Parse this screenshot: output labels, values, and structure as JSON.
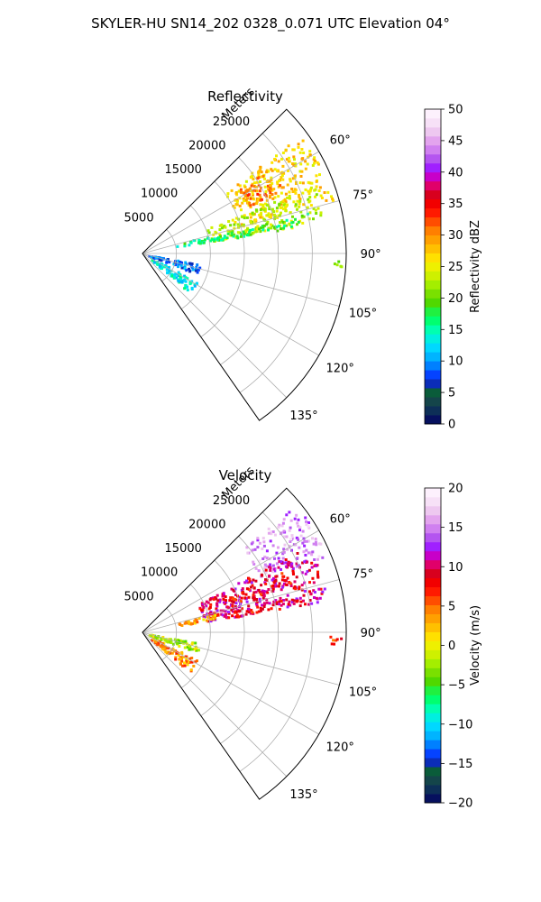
{
  "figure_title": "SKYLER-HU  SN14_202  0328_0.071 UTC Elevation 04°",
  "chart_data": [
    {
      "type": "heatmap",
      "projection": "polar-sector",
      "title": "Reflectivity",
      "range_label": "Meters",
      "range_ticks": [
        5000,
        10000,
        15000,
        20000,
        25000
      ],
      "range_tick_labels": [
        "5000",
        "10000",
        "15000",
        "20000",
        "25000"
      ],
      "range_max": 30000,
      "azimuth_range_deg": [
        45,
        145
      ],
      "azimuth_ticks_deg": [
        60,
        75,
        90,
        105,
        120,
        135
      ],
      "azimuth_tick_labels": [
        "60°",
        "75°",
        "90°",
        "105°",
        "120°",
        "135°"
      ],
      "grid": true,
      "colorbar": {
        "label": "Reflectivity dBZ",
        "range": [
          0,
          50
        ],
        "ticks": [
          0,
          5,
          10,
          15,
          20,
          25,
          30,
          35,
          40,
          45,
          50
        ],
        "tick_labels": [
          "0",
          "5",
          "10",
          "15",
          "20",
          "25",
          "30",
          "35",
          "40",
          "45",
          "50"
        ],
        "colors": [
          "#06105e",
          "#0d2f57",
          "#14454a",
          "#0a5c3a",
          "#0b2db8",
          "#0543ff",
          "#0080ff",
          "#00b4ff",
          "#00d8ff",
          "#00efe0",
          "#00ffb0",
          "#00ff70",
          "#20f040",
          "#50d800",
          "#7ae000",
          "#a4ee00",
          "#cef000",
          "#eef000",
          "#ffe000",
          "#ffc000",
          "#ffa000",
          "#ff7f00",
          "#ff4d00",
          "#ff1a00",
          "#f20000",
          "#d8001e",
          "#e0006a",
          "#c800c8",
          "#a020ff",
          "#b455f0",
          "#d080f0",
          "#e3a4ee",
          "#eec8f0",
          "#f7e1f7",
          "#fdf1fd"
        ]
      },
      "echo_regions": [
        {
          "az": [
            53,
            74
          ],
          "r": [
            15000,
            29000
          ],
          "v": 27
        },
        {
          "az": [
            56,
            66
          ],
          "r": [
            17000,
            23000
          ],
          "v": 31
        },
        {
          "az": [
            68,
            80
          ],
          "r": [
            10000,
            27000
          ],
          "v": 23
        },
        {
          "az": [
            74,
            79
          ],
          "r": [
            5000,
            11000
          ],
          "v": 16
        },
        {
          "az": [
            76,
            80
          ],
          "r": [
            10000,
            25000
          ],
          "v": 17
        },
        {
          "az": [
            91,
            94
          ],
          "r": [
            27500,
            29500
          ],
          "v": 22
        },
        {
          "az": [
            116,
            130
          ],
          "r": [
            1500,
            9000
          ],
          "v": 13
        },
        {
          "az": [
            100,
            110
          ],
          "r": [
            800,
            8500
          ],
          "v": 9
        }
      ]
    },
    {
      "type": "heatmap",
      "projection": "polar-sector",
      "title": "Velocity",
      "range_label": "Meters",
      "range_ticks": [
        5000,
        10000,
        15000,
        20000,
        25000
      ],
      "range_tick_labels": [
        "5000",
        "10000",
        "15000",
        "20000",
        "25000"
      ],
      "range_max": 30000,
      "azimuth_range_deg": [
        45,
        145
      ],
      "azimuth_ticks_deg": [
        60,
        75,
        90,
        105,
        120,
        135
      ],
      "azimuth_tick_labels": [
        "60°",
        "75°",
        "90°",
        "105°",
        "120°",
        "135°"
      ],
      "grid": true,
      "colorbar": {
        "label": "Velocity (m/s)",
        "range": [
          -20,
          20
        ],
        "ticks": [
          -20,
          -15,
          -10,
          -5,
          0,
          5,
          10,
          15,
          20
        ],
        "tick_labels": [
          "−20",
          "−15",
          "−10",
          "−5",
          "0",
          "5",
          "10",
          "15",
          "20"
        ],
        "colors": [
          "#06105e",
          "#0d2f57",
          "#14454a",
          "#0a5c3a",
          "#0b2db8",
          "#0543ff",
          "#0080ff",
          "#00b4ff",
          "#00d8ff",
          "#00efe0",
          "#00ffb0",
          "#00ff70",
          "#20f040",
          "#50d800",
          "#7ae000",
          "#a4ee00",
          "#cef000",
          "#eef000",
          "#ffe000",
          "#ffc000",
          "#ffa000",
          "#ff7f00",
          "#ff4d00",
          "#ff1a00",
          "#f20000",
          "#d8001e",
          "#e0006a",
          "#c800c8",
          "#a020ff",
          "#b455f0",
          "#d080f0",
          "#e3a4ee",
          "#eec8f0",
          "#f7e1f7",
          "#fdf1fd"
        ]
      },
      "echo_regions": [
        {
          "az": [
            50,
            67
          ],
          "r": [
            19000,
            29500
          ],
          "v": 15
        },
        {
          "az": [
            62,
            80
          ],
          "r": [
            9000,
            27500
          ],
          "v": 10
        },
        {
          "az": [
            66,
            72
          ],
          "r": [
            13000,
            24000
          ],
          "v": 8
        },
        {
          "az": [
            74,
            79
          ],
          "r": [
            5000,
            11000
          ],
          "v": 3
        },
        {
          "az": [
            76,
            80
          ],
          "r": [
            11000,
            26000
          ],
          "v": 9
        },
        {
          "az": [
            91,
            94
          ],
          "r": [
            27500,
            29500
          ],
          "v": 7
        },
        {
          "az": [
            116,
            130
          ],
          "r": [
            1500,
            9000
          ],
          "v": 4
        },
        {
          "az": [
            100,
            110
          ],
          "r": [
            800,
            8500
          ],
          "v": -2
        }
      ]
    }
  ]
}
